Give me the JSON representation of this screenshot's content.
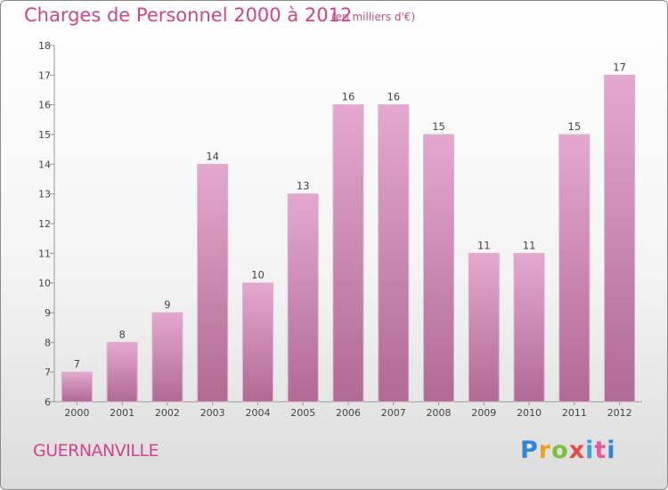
{
  "header": {
    "title": "Charges de Personnel 2000 à 2012",
    "subtitle": "(en milliers d'€)"
  },
  "footer": {
    "city": "GUERNANVILLE",
    "logo": [
      "P",
      "r",
      "o",
      "x",
      "i",
      "t",
      "i"
    ]
  },
  "colors": {
    "bar_top": "#e4a8cf",
    "bar_bottom": "#b06a94",
    "title": "#d0458a"
  },
  "chart_data": {
    "type": "bar",
    "title": "Charges de Personnel 2000 à 2012",
    "subtitle": "(en milliers d'€)",
    "categories": [
      "2000",
      "2001",
      "2002",
      "2003",
      "2004",
      "2005",
      "2006",
      "2007",
      "2008",
      "2009",
      "2010",
      "2011",
      "2012"
    ],
    "values": [
      7,
      8,
      9,
      14,
      10,
      13,
      16,
      16,
      15,
      11,
      11,
      15,
      17
    ],
    "ylim": [
      6,
      18
    ],
    "yticks": [
      6,
      7,
      8,
      9,
      10,
      11,
      12,
      13,
      14,
      15,
      16,
      17,
      18
    ],
    "grid": false,
    "legend": "none"
  }
}
